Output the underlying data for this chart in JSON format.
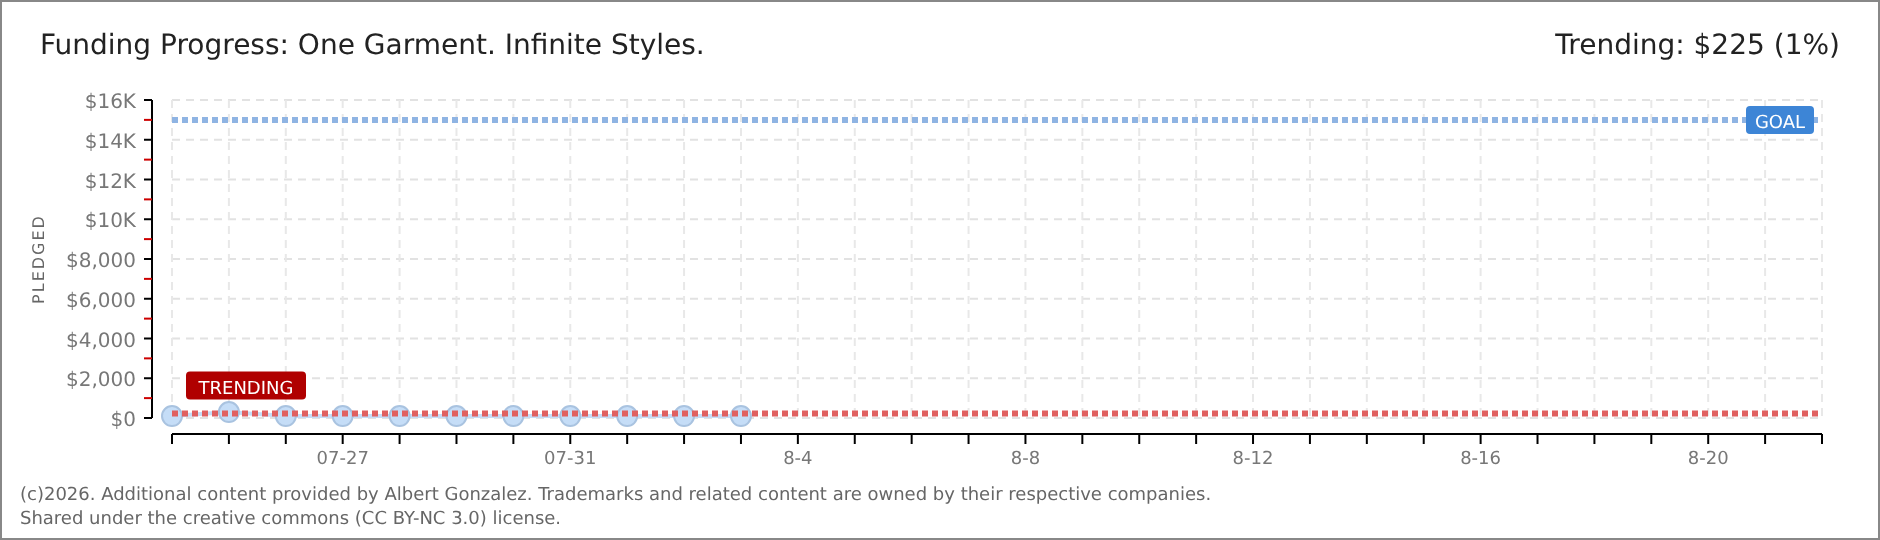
{
  "chart_data": {
    "type": "line",
    "title": "Funding Progress: One Garment. Infinite Styles.",
    "subtitle": "Trending: $225 (1%)",
    "ylabel": "PLEDGED",
    "x": [
      "--07-24",
      "--07-25",
      "--07-26",
      "--07-27",
      "--07-28",
      "--07-29",
      "--07-30",
      "--07-31",
      "--08-01",
      "--08-02",
      "--08-03"
    ],
    "series": [
      {
        "color": "#c5ddf7",
        "values": [
          100,
          300,
          100,
          100,
          100,
          100,
          100,
          100,
          100,
          100,
          100
        ]
      }
    ],
    "marker": "circle",
    "grid": true,
    "xlim": [
      "--07-24",
      "--08-22"
    ],
    "xticks": [
      {
        "value": "--07-24",
        "label": null
      },
      {
        "value": "--07-25",
        "label": null
      },
      {
        "value": "--07-26",
        "label": null
      },
      {
        "value": "--07-27",
        "label": "07-27"
      },
      {
        "value": "--07-28",
        "label": null
      },
      {
        "value": "--07-29",
        "label": null
      },
      {
        "value": "--07-30",
        "label": null
      },
      {
        "value": "--07-31",
        "label": "07-31"
      },
      {
        "value": "--08-01",
        "label": null
      },
      {
        "value": "--08-02",
        "label": null
      },
      {
        "value": "--08-03",
        "label": null
      },
      {
        "value": "--08-04",
        "label": "8-4"
      },
      {
        "value": "--08-05",
        "label": null
      },
      {
        "value": "--08-06",
        "label": null
      },
      {
        "value": "--08-07",
        "label": null
      },
      {
        "value": "--08-08",
        "label": "8-8"
      },
      {
        "value": "--08-09",
        "label": null
      },
      {
        "value": "--08-10",
        "label": null
      },
      {
        "value": "--08-11",
        "label": null
      },
      {
        "value": "--08-12",
        "label": "8-12"
      },
      {
        "value": "--08-13",
        "label": null
      },
      {
        "value": "--08-14",
        "label": null
      },
      {
        "value": "--08-15",
        "label": null
      },
      {
        "value": "--08-16",
        "label": "8-16"
      },
      {
        "value": "--08-17",
        "label": null
      },
      {
        "value": "--08-18",
        "label": null
      },
      {
        "value": "--08-19",
        "label": null
      },
      {
        "value": "--08-20",
        "label": "8-20"
      },
      {
        "value": "--08-21",
        "label": null
      },
      {
        "value": "--08-22",
        "label": null
      }
    ],
    "ylim": [
      0,
      16000
    ],
    "yticks": [
      {
        "value": 0,
        "label": "$0"
      },
      {
        "value": 1000,
        "label": null
      },
      {
        "value": 2000,
        "label": "$2,000"
      },
      {
        "value": 3000,
        "label": null
      },
      {
        "value": 4000,
        "label": "$4,000"
      },
      {
        "value": 5000,
        "label": null
      },
      {
        "value": 6000,
        "label": "$6,000"
      },
      {
        "value": 7000,
        "label": null
      },
      {
        "value": 8000,
        "label": "$8,000"
      },
      {
        "value": 9000,
        "label": null
      },
      {
        "value": 10000,
        "label": "$10K"
      },
      {
        "value": 11000,
        "label": null
      },
      {
        "value": 12000,
        "label": "$12K"
      },
      {
        "value": 13000,
        "label": null
      },
      {
        "value": 14000,
        "label": "$14K"
      },
      {
        "value": 15000,
        "label": null
      },
      {
        "value": 16000,
        "label": "$16K"
      }
    ],
    "ref_lines": [
      {
        "axis": "y",
        "value": 15000,
        "label": "GOAL",
        "color": "#8fb4e3",
        "line_style": "dotted"
      },
      {
        "axis": "y",
        "value": 225,
        "label": "TRENDING",
        "color": "#e06060",
        "line_style": "dotted"
      }
    ],
    "annotations": [
      "(c)2026. Additional content provided by Albert Gonzalez. Trademarks and related content are owned by their respective companies.",
      "Shared under the creative commons (CC BY-NC 3.0) license."
    ]
  }
}
